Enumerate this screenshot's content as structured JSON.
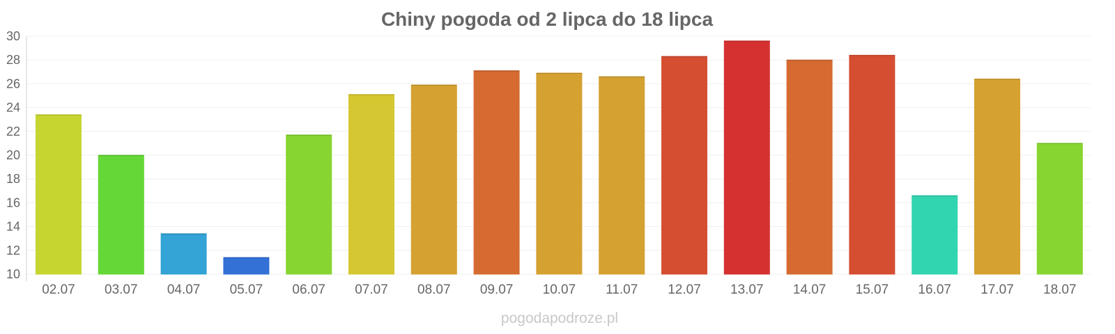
{
  "chart_data": {
    "type": "bar",
    "title": "Chiny pogoda od 2 lipca do 18 lipca",
    "xlabel": "",
    "ylabel": "",
    "ylim": [
      10,
      30
    ],
    "yticks": [
      10,
      12,
      14,
      16,
      18,
      20,
      22,
      24,
      26,
      28,
      30
    ],
    "grid": true,
    "legend": "none",
    "categories": [
      "02.07",
      "03.07",
      "04.07",
      "05.07",
      "06.07",
      "07.07",
      "08.07",
      "09.07",
      "10.07",
      "11.07",
      "12.07",
      "13.07",
      "14.07",
      "15.07",
      "16.07",
      "17.07",
      "18.07"
    ],
    "values": [
      23.4,
      20.0,
      13.4,
      11.4,
      21.7,
      25.1,
      25.9,
      27.1,
      26.9,
      26.6,
      28.3,
      29.6,
      28.0,
      28.4,
      16.6,
      26.4,
      21.0
    ],
    "colors": [
      "#cddc33",
      "#68de38",
      "#36a8dc",
      "#3574de",
      "#8adc33",
      "#dccd33",
      "#dca633",
      "#dc6e33",
      "#dca633",
      "#dca633",
      "#dc5033",
      "#dc3333",
      "#dc6e33",
      "#dc5033",
      "#33dcb5",
      "#dca633",
      "#8adc33"
    ]
  },
  "watermark": "pogodapodroze.pl"
}
